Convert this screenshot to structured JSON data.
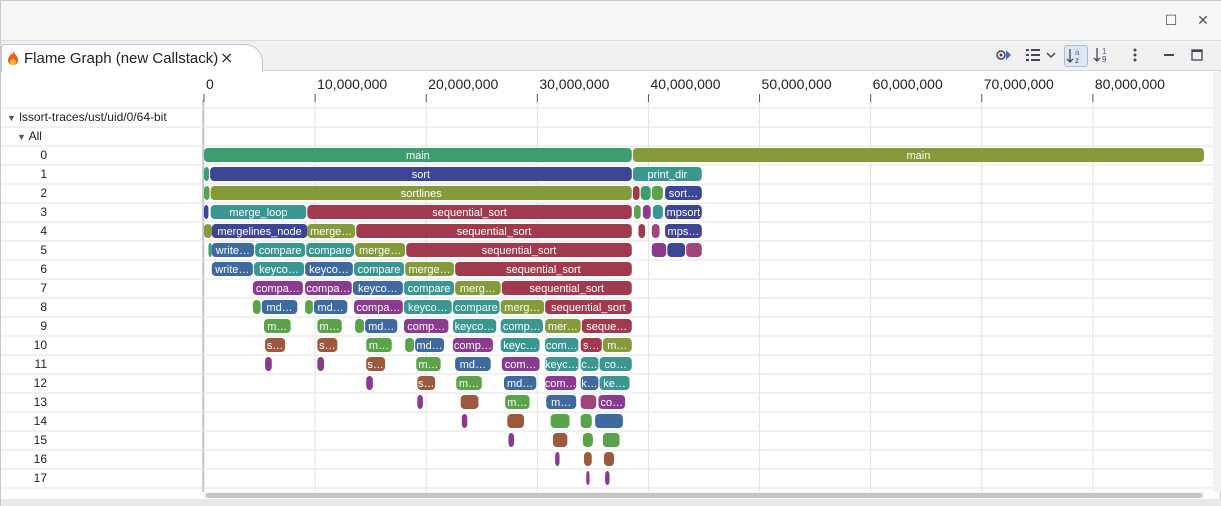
{
  "window": {
    "maximize_icon": "maximize-icon",
    "close_icon": "close-icon"
  },
  "view_tab": {
    "title": "Flame Graph (new Callstack)",
    "icon": "flame-icon",
    "close_label": "×"
  },
  "toolbar": {
    "items": [
      {
        "name": "filter-icon",
        "glyph": "⚙"
      },
      {
        "name": "tree-view-icon",
        "glyph": "☰"
      },
      {
        "name": "dropdown-chevron-icon",
        "glyph": "⌄"
      },
      {
        "name": "sort-by-name-icon",
        "glyph": "az"
      },
      {
        "name": "sort-by-id-icon",
        "glyph": "19"
      },
      {
        "name": "view-menu-icon",
        "glyph": "⋮"
      },
      {
        "name": "minimize-icon",
        "glyph": "—"
      },
      {
        "name": "maximize-icon",
        "glyph": "☐"
      }
    ]
  },
  "tree": {
    "trace": "lssort-traces/ust/uid/0/64-bit",
    "group": "All",
    "depths": [
      "0",
      "1",
      "2",
      "3",
      "4",
      "5",
      "6",
      "7",
      "8",
      "9",
      "10",
      "11",
      "12",
      "13",
      "14",
      "15",
      "16",
      "17"
    ]
  },
  "axis": {
    "max": 90000000,
    "ticks": [
      {
        "value": 0,
        "label": "0"
      },
      {
        "value": 10000000,
        "label": "10,000,000"
      },
      {
        "value": 20000000,
        "label": "20,000,000"
      },
      {
        "value": 30000000,
        "label": "30,000,000"
      },
      {
        "value": 40000000,
        "label": "40,000,000"
      },
      {
        "value": 50000000,
        "label": "50,000,000"
      },
      {
        "value": 60000000,
        "label": "60,000,000"
      },
      {
        "value": 70000000,
        "label": "70,000,000"
      },
      {
        "value": 80000000,
        "label": "80,000,000"
      }
    ]
  },
  "colors": {
    "main_green": "#3c9e6e",
    "olive": "#859a3a",
    "navy": "#3d4596",
    "crimson": "#a13a4d",
    "teal": "#3a9690",
    "purple": "#8a3b8f",
    "brown": "#9b5a3d",
    "steel": "#3e6aa0",
    "green": "#5aa34a",
    "magenta": "#a1447a"
  },
  "frames": [
    {
      "label": "main",
      "depth": 0,
      "start": 0,
      "end": 38500000,
      "color": "#3c9e6e"
    },
    {
      "label": "main",
      "depth": 0,
      "start": 38600000,
      "end": 90000000,
      "color": "#859a3a"
    },
    {
      "label": "",
      "depth": 1,
      "start": 0,
      "end": 450000,
      "color": "#3c9e6e"
    },
    {
      "label": "sort",
      "depth": 1,
      "start": 550000,
      "end": 38500000,
      "color": "#3d4596"
    },
    {
      "label": "print_dir",
      "depth": 1,
      "start": 38600000,
      "end": 44800000,
      "color": "#3a9690"
    },
    {
      "label": "",
      "depth": 2,
      "start": 0,
      "end": 500000,
      "color": "#5aa34a"
    },
    {
      "label": "sortlines",
      "depth": 2,
      "start": 600000,
      "end": 38500000,
      "color": "#859a3a"
    },
    {
      "label": "",
      "depth": 2,
      "start": 38600000,
      "end": 39200000,
      "color": "#a13a4d"
    },
    {
      "label": "",
      "depth": 2,
      "start": 39300000,
      "end": 40200000,
      "color": "#3c9e6e"
    },
    {
      "label": "",
      "depth": 2,
      "start": 40300000,
      "end": 41300000,
      "color": "#5aa34a"
    },
    {
      "label": "sort…",
      "depth": 2,
      "start": 41500000,
      "end": 44800000,
      "color": "#3d4596"
    },
    {
      "label": "",
      "depth": 3,
      "start": 0,
      "end": 400000,
      "color": "#3d4596"
    },
    {
      "label": "merge_loop",
      "depth": 3,
      "start": 600000,
      "end": 9200000,
      "color": "#3a9690"
    },
    {
      "label": "sequential_sort",
      "depth": 3,
      "start": 9300000,
      "end": 38500000,
      "color": "#a13a4d"
    },
    {
      "label": "",
      "depth": 3,
      "start": 38700000,
      "end": 39300000,
      "color": "#5aa34a"
    },
    {
      "label": "",
      "depth": 3,
      "start": 39500000,
      "end": 40200000,
      "color": "#8a3b8f"
    },
    {
      "label": "",
      "depth": 3,
      "start": 40400000,
      "end": 41300000,
      "color": "#3a9690"
    },
    {
      "label": "mpsort",
      "depth": 3,
      "start": 41500000,
      "end": 44800000,
      "color": "#3d4596"
    },
    {
      "label": "",
      "depth": 4,
      "start": 0,
      "end": 700000,
      "color": "#859a3a"
    },
    {
      "label": "mergelines_node",
      "depth": 4,
      "start": 700000,
      "end": 9300000,
      "color": "#3d4596"
    },
    {
      "label": "merge…",
      "depth": 4,
      "start": 9300000,
      "end": 13600000,
      "color": "#859a3a"
    },
    {
      "label": "sequential_sort",
      "depth": 4,
      "start": 13700000,
      "end": 38500000,
      "color": "#a13a4d"
    },
    {
      "label": "",
      "depth": 4,
      "start": 39100000,
      "end": 39700000,
      "color": "#a13a4d"
    },
    {
      "label": "",
      "depth": 4,
      "start": 40300000,
      "end": 41000000,
      "color": "#a1447a"
    },
    {
      "label": "mps…",
      "depth": 4,
      "start": 41500000,
      "end": 44800000,
      "color": "#3d4596"
    },
    {
      "label": "",
      "depth": 5,
      "start": 400000,
      "end": 700000,
      "color": "#3c9e6e"
    },
    {
      "label": "write…",
      "depth": 5,
      "start": 700000,
      "end": 4500000,
      "color": "#3e6aa0"
    },
    {
      "label": "compare",
      "depth": 5,
      "start": 4600000,
      "end": 9100000,
      "color": "#3a9690"
    },
    {
      "label": "compare",
      "depth": 5,
      "start": 9200000,
      "end": 13500000,
      "color": "#3a9690"
    },
    {
      "label": "merge…",
      "depth": 5,
      "start": 13600000,
      "end": 18100000,
      "color": "#859a3a"
    },
    {
      "label": "sequential_sort",
      "depth": 5,
      "start": 18200000,
      "end": 38500000,
      "color": "#a13a4d"
    },
    {
      "label": "",
      "depth": 5,
      "start": 40300000,
      "end": 41600000,
      "color": "#8a3b8f"
    },
    {
      "label": "",
      "depth": 5,
      "start": 41700000,
      "end": 43300000,
      "color": "#3d4596"
    },
    {
      "label": "",
      "depth": 5,
      "start": 43400000,
      "end": 44800000,
      "color": "#a1447a"
    },
    {
      "label": "write…",
      "depth": 6,
      "start": 700000,
      "end": 4400000,
      "color": "#3e6aa0"
    },
    {
      "label": "keyco…",
      "depth": 6,
      "start": 4500000,
      "end": 9000000,
      "color": "#3a9690"
    },
    {
      "label": "keyco…",
      "depth": 6,
      "start": 9100000,
      "end": 13400000,
      "color": "#3e6aa0"
    },
    {
      "label": "compare",
      "depth": 6,
      "start": 13500000,
      "end": 18000000,
      "color": "#3a9690"
    },
    {
      "label": "merge…",
      "depth": 6,
      "start": 18100000,
      "end": 22500000,
      "color": "#859a3a"
    },
    {
      "label": "sequential_sort",
      "depth": 6,
      "start": 22600000,
      "end": 38500000,
      "color": "#a13a4d"
    },
    {
      "label": "compa…",
      "depth": 7,
      "start": 4400000,
      "end": 8900000,
      "color": "#8a3b8f"
    },
    {
      "label": "compa…",
      "depth": 7,
      "start": 9100000,
      "end": 13300000,
      "color": "#8a3b8f"
    },
    {
      "label": "keyco…",
      "depth": 7,
      "start": 13400000,
      "end": 17900000,
      "color": "#3e6aa0"
    },
    {
      "label": "compare",
      "depth": 7,
      "start": 18000000,
      "end": 22500000,
      "color": "#3a9690"
    },
    {
      "label": "merg…",
      "depth": 7,
      "start": 22600000,
      "end": 26700000,
      "color": "#859a3a"
    },
    {
      "label": "sequential_sort",
      "depth": 7,
      "start": 26800000,
      "end": 38500000,
      "color": "#a13a4d"
    },
    {
      "label": "",
      "depth": 8,
      "start": 4400000,
      "end": 5100000,
      "color": "#5aa34a"
    },
    {
      "label": "md…",
      "depth": 8,
      "start": 5200000,
      "end": 8400000,
      "color": "#3e6aa0"
    },
    {
      "label": "",
      "depth": 8,
      "start": 9100000,
      "end": 9800000,
      "color": "#5aa34a"
    },
    {
      "label": "md…",
      "depth": 8,
      "start": 9900000,
      "end": 12900000,
      "color": "#3e6aa0"
    },
    {
      "label": "compa…",
      "depth": 8,
      "start": 13500000,
      "end": 17900000,
      "color": "#8a3b8f"
    },
    {
      "label": "keyco…",
      "depth": 8,
      "start": 18000000,
      "end": 22300000,
      "color": "#3a9690"
    },
    {
      "label": "compare",
      "depth": 8,
      "start": 22400000,
      "end": 26600000,
      "color": "#3a9690"
    },
    {
      "label": "merg…",
      "depth": 8,
      "start": 26700000,
      "end": 30600000,
      "color": "#859a3a"
    },
    {
      "label": "sequential_sort",
      "depth": 8,
      "start": 30700000,
      "end": 38500000,
      "color": "#a13a4d"
    },
    {
      "label": "m…",
      "depth": 9,
      "start": 5400000,
      "end": 7800000,
      "color": "#5aa34a"
    },
    {
      "label": "m…",
      "depth": 9,
      "start": 10200000,
      "end": 12400000,
      "color": "#5aa34a"
    },
    {
      "label": "",
      "depth": 9,
      "start": 13600000,
      "end": 14400000,
      "color": "#5aa34a"
    },
    {
      "label": "md…",
      "depth": 9,
      "start": 14500000,
      "end": 17400000,
      "color": "#3e6aa0"
    },
    {
      "label": "comp…",
      "depth": 9,
      "start": 18000000,
      "end": 22000000,
      "color": "#8a3b8f"
    },
    {
      "label": "keyco…",
      "depth": 9,
      "start": 22400000,
      "end": 26300000,
      "color": "#3a9690"
    },
    {
      "label": "comp…",
      "depth": 9,
      "start": 26700000,
      "end": 30500000,
      "color": "#3a9690"
    },
    {
      "label": "mer…",
      "depth": 9,
      "start": 30700000,
      "end": 33900000,
      "color": "#859a3a"
    },
    {
      "label": "seque…",
      "depth": 9,
      "start": 34000000,
      "end": 38500000,
      "color": "#a13a4d"
    },
    {
      "label": "s…",
      "depth": 10,
      "start": 5500000,
      "end": 7300000,
      "color": "#9b5a3d"
    },
    {
      "label": "s…",
      "depth": 10,
      "start": 10200000,
      "end": 12000000,
      "color": "#9b5a3d"
    },
    {
      "label": "m…",
      "depth": 10,
      "start": 14600000,
      "end": 16900000,
      "color": "#5aa34a"
    },
    {
      "label": "",
      "depth": 10,
      "start": 18100000,
      "end": 18900000,
      "color": "#5aa34a"
    },
    {
      "label": "md…",
      "depth": 10,
      "start": 19000000,
      "end": 21600000,
      "color": "#3e6aa0"
    },
    {
      "label": "comp…",
      "depth": 10,
      "start": 22400000,
      "end": 26000000,
      "color": "#8a3b8f"
    },
    {
      "label": "keyc…",
      "depth": 10,
      "start": 26700000,
      "end": 30200000,
      "color": "#3a9690"
    },
    {
      "label": "com…",
      "depth": 10,
      "start": 30700000,
      "end": 33700000,
      "color": "#3a9690"
    },
    {
      "label": "s…",
      "depth": 10,
      "start": 33900000,
      "end": 35800000,
      "color": "#a13a4d"
    },
    {
      "label": "m…",
      "depth": 10,
      "start": 35900000,
      "end": 38500000,
      "color": "#859a3a"
    },
    {
      "label": "",
      "depth": 11,
      "start": 5500000,
      "end": 6100000,
      "color": "#8a3b8f"
    },
    {
      "label": "",
      "depth": 11,
      "start": 10200000,
      "end": 10800000,
      "color": "#8a3b8f"
    },
    {
      "label": "s…",
      "depth": 11,
      "start": 14600000,
      "end": 16300000,
      "color": "#9b5a3d"
    },
    {
      "label": "m…",
      "depth": 11,
      "start": 19100000,
      "end": 21300000,
      "color": "#5aa34a"
    },
    {
      "label": "md…",
      "depth": 11,
      "start": 22600000,
      "end": 25800000,
      "color": "#3e6aa0"
    },
    {
      "label": "com…",
      "depth": 11,
      "start": 26800000,
      "end": 30200000,
      "color": "#8a3b8f"
    },
    {
      "label": "keyc…",
      "depth": 11,
      "start": 30700000,
      "end": 33700000,
      "color": "#3a9690"
    },
    {
      "label": "c…",
      "depth": 11,
      "start": 33900000,
      "end": 35500000,
      "color": "#3a9690"
    },
    {
      "label": "co…",
      "depth": 11,
      "start": 35600000,
      "end": 38500000,
      "color": "#3a9690"
    },
    {
      "label": "",
      "depth": 12,
      "start": 14600000,
      "end": 15200000,
      "color": "#8a3b8f"
    },
    {
      "label": "s…",
      "depth": 12,
      "start": 19200000,
      "end": 20800000,
      "color": "#9b5a3d"
    },
    {
      "label": "m…",
      "depth": 12,
      "start": 22700000,
      "end": 25000000,
      "color": "#5aa34a"
    },
    {
      "label": "md…",
      "depth": 12,
      "start": 27000000,
      "end": 29900000,
      "color": "#3e6aa0"
    },
    {
      "label": "com…",
      "depth": 12,
      "start": 30700000,
      "end": 33500000,
      "color": "#8a3b8f"
    },
    {
      "label": "k…",
      "depth": 12,
      "start": 33900000,
      "end": 35500000,
      "color": "#3e6aa0"
    },
    {
      "label": "ke…",
      "depth": 12,
      "start": 35600000,
      "end": 38300000,
      "color": "#3a9690"
    },
    {
      "label": "",
      "depth": 13,
      "start": 19200000,
      "end": 19700000,
      "color": "#8a3b8f"
    },
    {
      "label": "",
      "depth": 13,
      "start": 23100000,
      "end": 24700000,
      "color": "#9b5a3d"
    },
    {
      "label": "m…",
      "depth": 13,
      "start": 27100000,
      "end": 29300000,
      "color": "#5aa34a"
    },
    {
      "label": "m…",
      "depth": 13,
      "start": 30800000,
      "end": 33500000,
      "color": "#3e6aa0"
    },
    {
      "label": "",
      "depth": 13,
      "start": 33900000,
      "end": 35300000,
      "color": "#a1447a"
    },
    {
      "label": "co…",
      "depth": 13,
      "start": 35500000,
      "end": 37900000,
      "color": "#8a3b8f"
    },
    {
      "label": "",
      "depth": 14,
      "start": 23200000,
      "end": 23700000,
      "color": "#8a3b8f"
    },
    {
      "label": "",
      "depth": 14,
      "start": 27300000,
      "end": 28800000,
      "color": "#9b5a3d"
    },
    {
      "label": "",
      "depth": 14,
      "start": 31200000,
      "end": 32900000,
      "color": "#5aa34a"
    },
    {
      "label": "",
      "depth": 14,
      "start": 33900000,
      "end": 34900000,
      "color": "#5aa34a"
    },
    {
      "label": "",
      "depth": 14,
      "start": 35200000,
      "end": 37700000,
      "color": "#3e6aa0"
    },
    {
      "label": "",
      "depth": 15,
      "start": 27400000,
      "end": 27900000,
      "color": "#8a3b8f"
    },
    {
      "label": "",
      "depth": 15,
      "start": 31400000,
      "end": 32700000,
      "color": "#9b5a3d"
    },
    {
      "label": "",
      "depth": 15,
      "start": 34100000,
      "end": 35000000,
      "color": "#5aa34a"
    },
    {
      "label": "",
      "depth": 15,
      "start": 35900000,
      "end": 37400000,
      "color": "#5aa34a"
    },
    {
      "label": "",
      "depth": 16,
      "start": 31600000,
      "end": 32000000,
      "color": "#8a3b8f"
    },
    {
      "label": "",
      "depth": 16,
      "start": 34200000,
      "end": 34900000,
      "color": "#9b5a3d"
    },
    {
      "label": "",
      "depth": 16,
      "start": 36000000,
      "end": 36900000,
      "color": "#9b5a3d"
    },
    {
      "label": "",
      "depth": 17,
      "start": 34400000,
      "end": 34700000,
      "color": "#8a3b8f"
    },
    {
      "label": "",
      "depth": 17,
      "start": 36100000,
      "end": 36500000,
      "color": "#8a3b8f"
    }
  ]
}
